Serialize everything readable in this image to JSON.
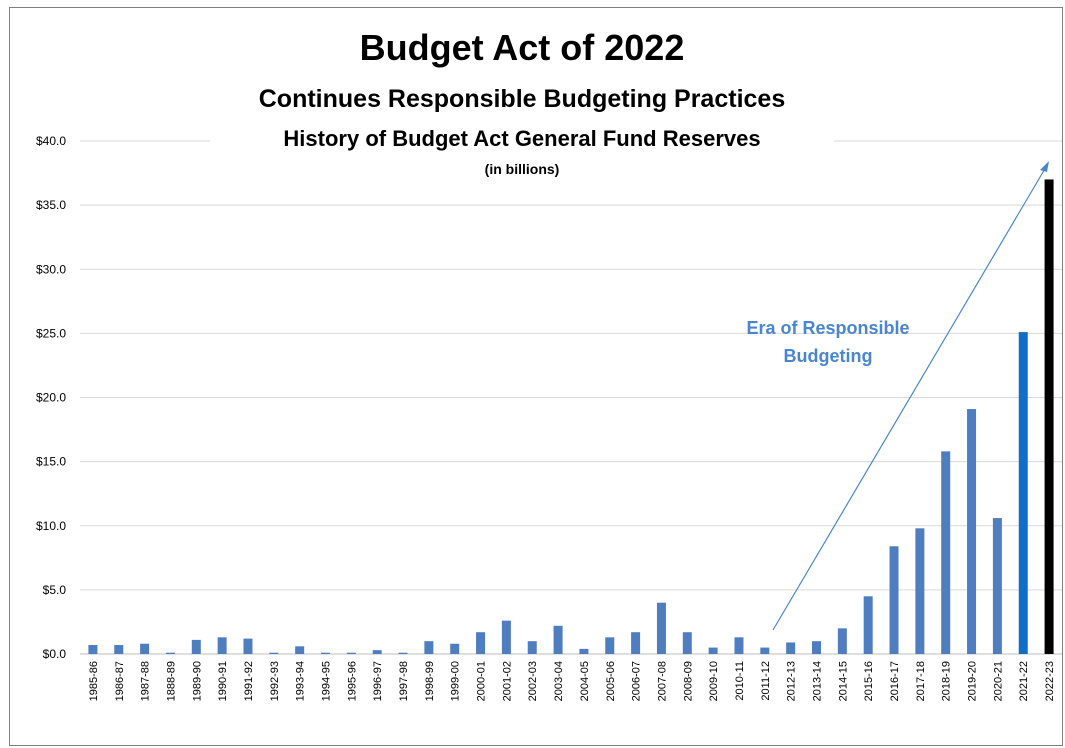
{
  "chart_data": {
    "type": "bar",
    "title": "Budget Act of 2022",
    "subtitle": "Continues  Responsible Budgeting Practices",
    "subtitle2": "History of Budget Act General Fund Reserves",
    "units_note": "(in billions)",
    "annotation": [
      "Era of Responsible",
      "Budgeting"
    ],
    "ylim": [
      0,
      40
    ],
    "yticks": [
      "$0.0",
      "$5.0",
      "$10.0",
      "$15.0",
      "$20.0",
      "$25.0",
      "$30.0",
      "$35.0",
      "$40.0"
    ],
    "grid": true,
    "categories": [
      "1985-86",
      "1986-87",
      "1987-88",
      "1888-89",
      "1989-90",
      "1990-91",
      "1991-92",
      "1992-93",
      "1993-94",
      "1994-95",
      "1995-96",
      "1996-97",
      "1997-98",
      "1998-99",
      "1999-00",
      "2000-01",
      "2001-02",
      "2002-03",
      "2003-04",
      "2004-05",
      "2005-06",
      "2006-07",
      "2007-08",
      "2008-09",
      "2009-10",
      "2010-11",
      "2011-12",
      "2012-13",
      "2013-14",
      "2014-15",
      "2015-16",
      "2016-17",
      "2017-18",
      "2018-19",
      "2019-20",
      "2020-21",
      "2021-22",
      "2022-23"
    ],
    "values": [
      0.7,
      0.7,
      0.8,
      0.1,
      1.1,
      1.3,
      1.2,
      0.1,
      0.6,
      0.1,
      0.1,
      0.3,
      0.1,
      1.0,
      0.8,
      1.7,
      2.6,
      1.0,
      2.2,
      0.4,
      1.3,
      1.7,
      4.0,
      1.7,
      0.5,
      1.3,
      0.5,
      0.9,
      1.0,
      2.0,
      4.5,
      8.4,
      9.8,
      15.8,
      19.1,
      10.6,
      25.1,
      37.0
    ],
    "colors": {
      "default": "#4f7ec0",
      "highlight": "#0f6fc6",
      "final": "#000000",
      "annotation": "#4a86d0",
      "grid": "#d9d9d9"
    }
  }
}
